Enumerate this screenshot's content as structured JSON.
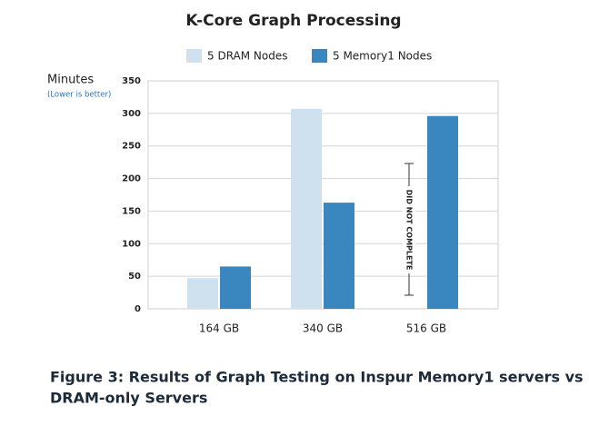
{
  "chart_data": {
    "type": "bar",
    "title": "K-Core Graph Processing",
    "y_label": "Minutes",
    "y_sublabel": "(Lower is better)",
    "categories": [
      "164 GB",
      "340 GB",
      "516 GB"
    ],
    "series": [
      {
        "name": "5 DRAM Nodes",
        "color": "#cfe0ee",
        "values": [
          47,
          307,
          null
        ]
      },
      {
        "name": "5 Memory1 Nodes",
        "color": "#3a87bf",
        "values": [
          65,
          163,
          296
        ]
      }
    ],
    "ylim": [
      0,
      350
    ],
    "yticks": [
      0,
      50,
      100,
      150,
      200,
      250,
      300,
      350
    ],
    "grid": true,
    "annotation": "DID NOT COMPLETE",
    "caption": [
      "Figure 3: Results of Graph Testing on Inspur Memory1 servers vs",
      "DRAM-only Servers"
    ]
  }
}
